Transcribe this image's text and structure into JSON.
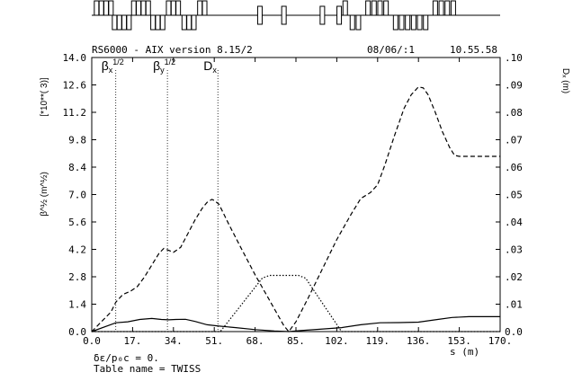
{
  "header": {
    "program": "RS6000 - AIX version 8.15/2",
    "date": "08/06/:1",
    "time": "10.55.58"
  },
  "footnote": {
    "line1": "δε/p₀c = 0.",
    "line2": "Table name = TWISS"
  },
  "chart_data": {
    "type": "line",
    "xlabel": "s (m)",
    "ylabel_left": "β^½ (m^½)",
    "ylabel_left_scale": "[*10**( 3)]",
    "ylabel_right": "Dₓ (m)",
    "xlim": [
      0,
      170
    ],
    "ylim_left": [
      0,
      14
    ],
    "ylim_right": [
      0,
      0.1
    ],
    "x_ticks": [
      "0.0",
      "17.",
      "34.",
      "51.",
      "68.",
      "85.",
      "102.",
      "119.",
      "136.",
      "153.",
      "170."
    ],
    "y_ticks_left": [
      "0.0",
      "1.4",
      "2.8",
      "4.2",
      "5.6",
      "7.0",
      "8.4",
      "9.8",
      "11.2",
      "12.6",
      "14.0"
    ],
    "y_ticks_right": [
      "0.0",
      ".01",
      ".02",
      ".03",
      ".04",
      ".05",
      ".06",
      ".07",
      ".08",
      ".09",
      ".10"
    ],
    "legend": [
      {
        "label": "β",
        "sub": "x",
        "sup": "1/2",
        "style": "solid",
        "x": 10
      },
      {
        "label": "β",
        "sub": "y",
        "sup": "1/2",
        "style": "dashed",
        "x": 31.5
      },
      {
        "label": "D",
        "sub": "x",
        "sup": "",
        "style": "dotted",
        "x": 52.5
      }
    ],
    "series": [
      {
        "name": "βx^1/2",
        "axis": "left",
        "style": "solid",
        "x": [
          0,
          10,
          15,
          20,
          25,
          29,
          32,
          35,
          39,
          43,
          48,
          53,
          60,
          68,
          76,
          82,
          87,
          95,
          104,
          112,
          120,
          128,
          136,
          144,
          150,
          157,
          164,
          170
        ],
        "y": [
          0.0,
          0.45,
          0.5,
          0.62,
          0.67,
          0.62,
          0.6,
          0.62,
          0.63,
          0.52,
          0.35,
          0.28,
          0.2,
          0.1,
          0.03,
          0.0,
          0.05,
          0.12,
          0.2,
          0.35,
          0.45,
          0.46,
          0.48,
          0.62,
          0.72,
          0.76,
          0.76,
          0.76
        ]
      },
      {
        "name": "βy^1/2",
        "axis": "left",
        "style": "dashed",
        "x": [
          0,
          4,
          8,
          10,
          13,
          16,
          19,
          22,
          25,
          28,
          30,
          32,
          34,
          37,
          40,
          43,
          46,
          48,
          50,
          51,
          53,
          57,
          62,
          68,
          74,
          80,
          82,
          85,
          90,
          96,
          102,
          108,
          112,
          116,
          119,
          122,
          126,
          130,
          133,
          136,
          138,
          140,
          143,
          146,
          149,
          151,
          153,
          157,
          163,
          170
        ],
        "y": [
          0.0,
          0.5,
          1.0,
          1.5,
          1.9,
          2.05,
          2.3,
          2.8,
          3.4,
          4.0,
          4.25,
          4.15,
          4.05,
          4.3,
          5.0,
          5.7,
          6.3,
          6.6,
          6.75,
          6.7,
          6.5,
          5.5,
          4.3,
          2.9,
          1.6,
          0.3,
          0.0,
          0.5,
          1.7,
          3.2,
          4.7,
          6.0,
          6.8,
          7.1,
          7.5,
          8.5,
          10.0,
          11.4,
          12.1,
          12.5,
          12.45,
          12.1,
          11.2,
          10.2,
          9.4,
          9.0,
          8.95,
          8.95,
          8.95,
          8.95
        ]
      },
      {
        "name": "Dx",
        "axis": "right",
        "style": "dotted",
        "x": [
          0,
          53.5,
          71,
          74,
          86,
          89,
          104,
          170
        ],
        "y": [
          0,
          0,
          0.0195,
          0.0205,
          0.0205,
          0.0195,
          0,
          0
        ]
      }
    ]
  },
  "lattice": {
    "elements": [
      {
        "s": 2.0,
        "type": "up"
      },
      {
        "s": 4.0,
        "type": "up"
      },
      {
        "s": 6.0,
        "type": "up"
      },
      {
        "s": 8.0,
        "type": "up"
      },
      {
        "s": 9.5,
        "type": "down"
      },
      {
        "s": 11.5,
        "type": "down"
      },
      {
        "s": 13.5,
        "type": "down"
      },
      {
        "s": 15.5,
        "type": "down"
      },
      {
        "s": 17.5,
        "type": "up"
      },
      {
        "s": 19.5,
        "type": "up"
      },
      {
        "s": 21.5,
        "type": "up"
      },
      {
        "s": 23.5,
        "type": "up"
      },
      {
        "s": 25.5,
        "type": "down"
      },
      {
        "s": 27.5,
        "type": "down"
      },
      {
        "s": 29.5,
        "type": "down"
      },
      {
        "s": 32.0,
        "type": "up"
      },
      {
        "s": 34.0,
        "type": "up"
      },
      {
        "s": 36.0,
        "type": "up"
      },
      {
        "s": 38.5,
        "type": "down"
      },
      {
        "s": 40.5,
        "type": "down"
      },
      {
        "s": 42.5,
        "type": "down"
      },
      {
        "s": 45.0,
        "type": "up"
      },
      {
        "s": 47.0,
        "type": "up"
      },
      {
        "s": 70.0,
        "type": "box"
      },
      {
        "s": 80.0,
        "type": "box"
      },
      {
        "s": 96.0,
        "type": "box"
      },
      {
        "s": 103.0,
        "type": "box"
      },
      {
        "s": 105.5,
        "type": "up"
      },
      {
        "s": 108.5,
        "type": "down"
      },
      {
        "s": 111.0,
        "type": "down"
      },
      {
        "s": 115.0,
        "type": "up"
      },
      {
        "s": 117.5,
        "type": "up"
      },
      {
        "s": 120.0,
        "type": "up"
      },
      {
        "s": 122.5,
        "type": "up"
      },
      {
        "s": 126.5,
        "type": "down"
      },
      {
        "s": 129.0,
        "type": "down"
      },
      {
        "s": 131.5,
        "type": "down"
      },
      {
        "s": 134.0,
        "type": "down"
      },
      {
        "s": 136.5,
        "type": "down"
      },
      {
        "s": 139.0,
        "type": "down"
      },
      {
        "s": 143.0,
        "type": "up"
      },
      {
        "s": 145.5,
        "type": "up"
      },
      {
        "s": 148.0,
        "type": "up"
      },
      {
        "s": 150.5,
        "type": "up"
      }
    ]
  }
}
